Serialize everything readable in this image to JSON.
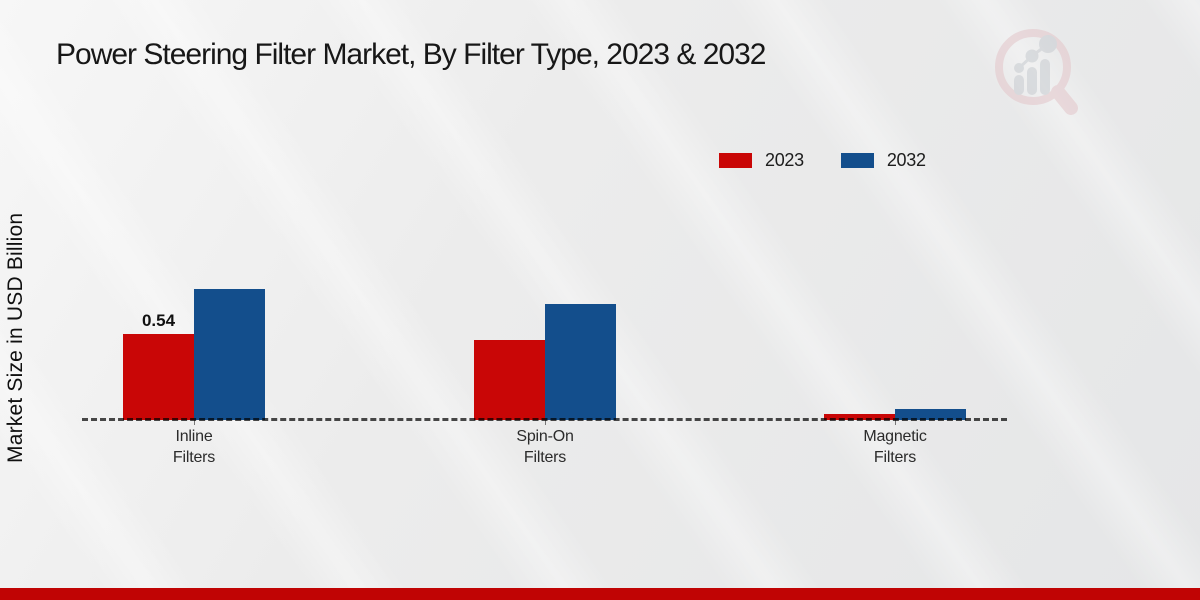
{
  "title": "Power Steering Filter Market, By Filter Type, 2023 & 2032",
  "colors": {
    "series_2023": "#c90606",
    "series_2032": "#134e8c",
    "footer_bar": "#c00404",
    "axis_dash": "#4a4a4a"
  },
  "legend": {
    "items": [
      {
        "label": "2023",
        "color": "#c90606"
      },
      {
        "label": "2032",
        "color": "#134e8c"
      }
    ]
  },
  "watermark_icon": "magnifier-bar-chart-logo",
  "chart_data": {
    "type": "bar",
    "title": "Power Steering Filter Market, By Filter Type, 2023 & 2032",
    "xlabel": "",
    "ylabel": "Market Size in USD Billion",
    "categories": [
      "Inline\nFilters",
      "Spin-On\nFilters",
      "Magnetic\nFilters"
    ],
    "series": [
      {
        "name": "2023",
        "color": "#c90606",
        "values": [
          0.54,
          0.5,
          0.04
        ]
      },
      {
        "name": "2032",
        "color": "#134e8c",
        "values": [
          0.82,
          0.73,
          0.07
        ]
      }
    ],
    "annotations": [
      {
        "series": "2023",
        "category_index": 0,
        "text": "0.54"
      }
    ],
    "ylim": [
      0,
      1.0
    ],
    "grid": false,
    "y_axis_ticks_visible": false,
    "legend_position": "upper-right",
    "baseline_style": "dashed"
  }
}
